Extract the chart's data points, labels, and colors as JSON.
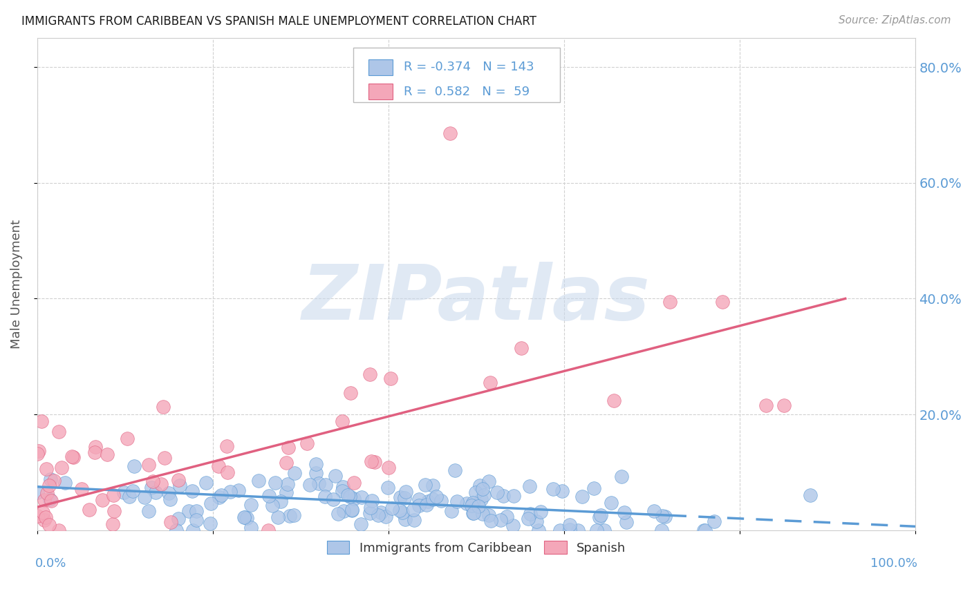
{
  "title": "IMMIGRANTS FROM CARIBBEAN VS SPANISH MALE UNEMPLOYMENT CORRELATION CHART",
  "source": "Source: ZipAtlas.com",
  "ylabel": "Male Unemployment",
  "legend_labels": [
    "Immigrants from Caribbean",
    "Spanish"
  ],
  "blue_color": "#aec6e8",
  "pink_color": "#f4a7b9",
  "blue_line_color": "#5b9bd5",
  "pink_line_color": "#e06080",
  "title_color": "#1a1a1a",
  "axis_label_color": "#5b9bd5",
  "R_blue": -0.374,
  "N_blue": 143,
  "R_pink": 0.582,
  "N_pink": 59,
  "xlim": [
    0.0,
    1.0
  ],
  "ylim": [
    0.0,
    0.85
  ],
  "yticks": [
    0.2,
    0.4,
    0.6,
    0.8
  ],
  "ytick_labels": [
    "20.0%",
    "40.0%",
    "60.0%",
    "80.0%"
  ],
  "watermark": "ZIPatlas",
  "blue_trend_start_y": 0.075,
  "blue_trend_end_y": 0.005,
  "pink_trend_start_y": 0.04,
  "pink_trend_end_y": 0.4
}
